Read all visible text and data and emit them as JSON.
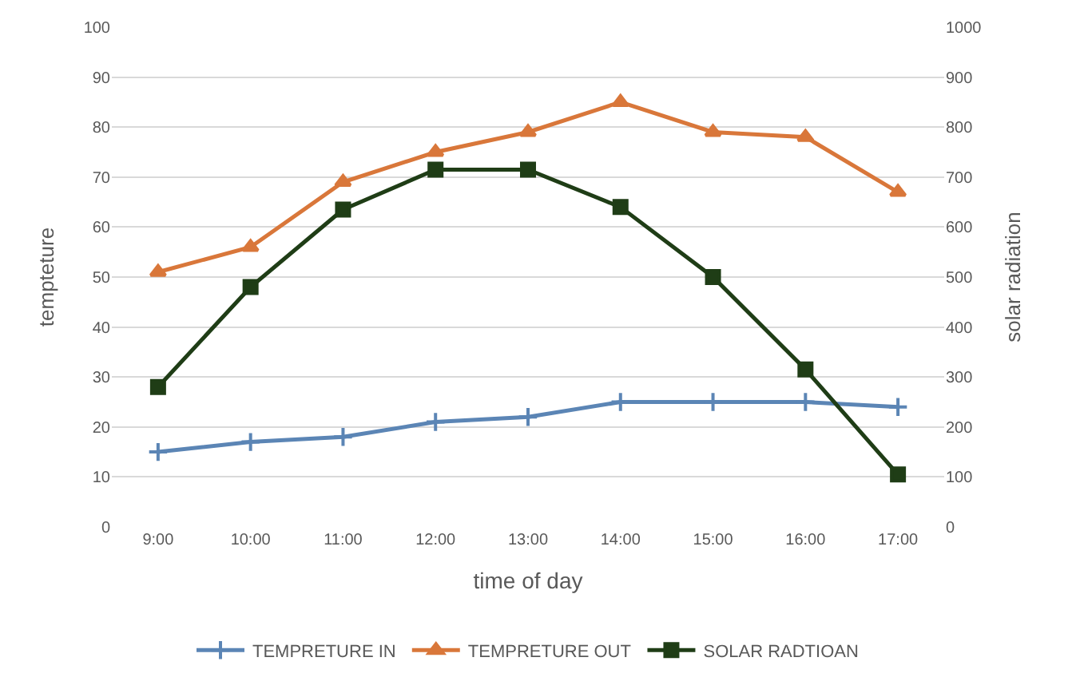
{
  "chart_data": {
    "type": "line",
    "xlabel": "time of day",
    "ylabel": "tempteture",
    "y2label": "solar radiation",
    "categories": [
      "9:00",
      "10:00",
      "11:00",
      "12:00",
      "13:00",
      "14:00",
      "15:00",
      "16:00",
      "17:00"
    ],
    "series": [
      {
        "name": "TEMPRETURE IN",
        "color": "#5b85b5",
        "marker": "cross",
        "values": [
          15,
          17,
          18,
          21,
          22,
          25,
          25,
          25,
          24
        ]
      },
      {
        "name": "TEMPRETURE OUT",
        "color": "#d9773a",
        "marker": "triangle",
        "values": [
          51,
          56,
          69,
          75,
          79,
          85,
          79,
          78,
          67
        ]
      },
      {
        "name": "SOLAR RADTIOAN",
        "color": "#1f3d16",
        "marker": "square",
        "axis": "y2",
        "values": [
          280,
          480,
          635,
          715,
          715,
          640,
          500,
          315,
          105
        ]
      }
    ],
    "ylim": [
      0,
      100
    ],
    "yticks": [
      0,
      10,
      20,
      30,
      40,
      50,
      60,
      70,
      80,
      90,
      100
    ],
    "y2lim": [
      0,
      1000
    ],
    "y2ticks": [
      0,
      100,
      200,
      300,
      400,
      500,
      600,
      700,
      800,
      900,
      1000
    ],
    "grid": "y",
    "legend": "bottom",
    "line_style": "solid"
  }
}
